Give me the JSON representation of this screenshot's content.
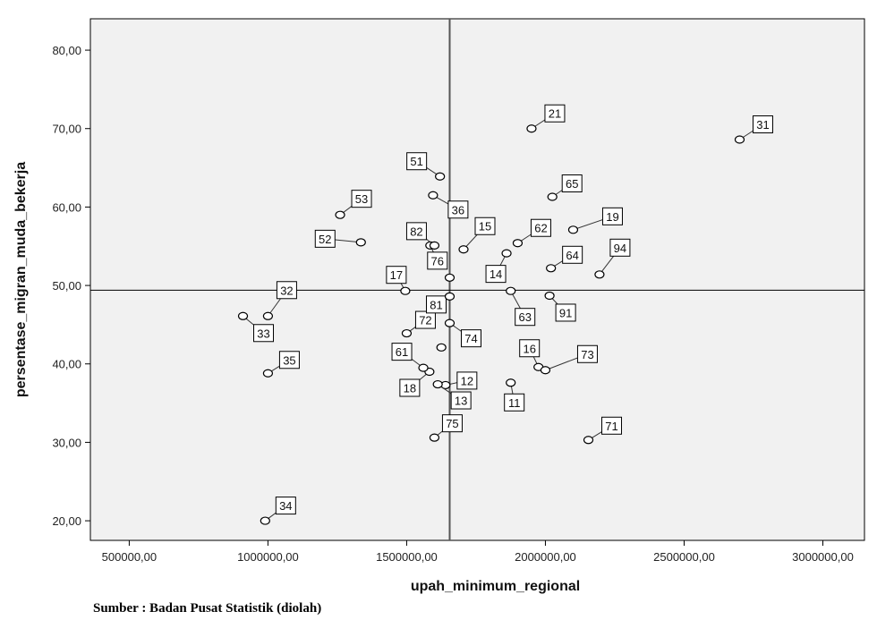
{
  "chart_data": {
    "type": "scatter",
    "xlabel": "upah_minimum_regional",
    "ylabel": "persentase_migran_muda_bekerja",
    "xlim": [
      360000,
      3150000
    ],
    "ylim": [
      17500,
      84000
    ],
    "x_ticks": [
      500000,
      1000000,
      1500000,
      2000000,
      2500000,
      3000000
    ],
    "x_tick_labels": [
      "500000,00",
      "1000000,00",
      "1500000,00",
      "2000000,00",
      "2500000,00",
      "3000000,00"
    ],
    "y_ticks": [
      20,
      30,
      40,
      50,
      60,
      70,
      80
    ],
    "y_tick_labels": [
      "20,00",
      "30,00",
      "40,00",
      "50,00",
      "60,00",
      "70,00",
      "80,00"
    ],
    "reference_lines": {
      "x": 1655000,
      "y": 49.4
    },
    "grid": false,
    "plot_background": "#f1f1f1",
    "marker_color": "#000000",
    "points": [
      {
        "label": "11",
        "x": 1875000,
        "y": 37.6,
        "dx": 4,
        "dy": 22
      },
      {
        "label": "12",
        "x": 1640000,
        "y": 37.3,
        "dx": 24,
        "dy": -5
      },
      {
        "label": "13",
        "x": 1612000,
        "y": 37.4,
        "dx": 26,
        "dy": 18
      },
      {
        "label": "14",
        "x": 1860000,
        "y": 54.1,
        "dx": -12,
        "dy": 23
      },
      {
        "label": "15",
        "x": 1705000,
        "y": 54.6,
        "dx": 24,
        "dy": -26
      },
      {
        "label": "16",
        "x": 1975000,
        "y": 39.6,
        "dx": -10,
        "dy": -21
      },
      {
        "label": "17",
        "x": 1495000,
        "y": 49.3,
        "dx": -10,
        "dy": -18
      },
      {
        "label": "18",
        "x": 1582000,
        "y": 39.0,
        "dx": -22,
        "dy": 18
      },
      {
        "label": "19",
        "x": 2100000,
        "y": 57.1,
        "dx": 44,
        "dy": -15
      },
      {
        "label": "21",
        "x": 1950000,
        "y": 70.0,
        "dx": 26,
        "dy": -17
      },
      {
        "label": "31",
        "x": 2700000,
        "y": 68.6,
        "dx": 26,
        "dy": -17
      },
      {
        "label": "32",
        "x": 1000000,
        "y": 46.1,
        "dx": 21,
        "dy": -29
      },
      {
        "label": "33",
        "x": 910000,
        "y": 46.1,
        "dx": 23,
        "dy": 19
      },
      {
        "label": "34",
        "x": 990000,
        "y": 20.0,
        "dx": 23,
        "dy": -17
      },
      {
        "label": "35",
        "x": 1000000,
        "y": 38.8,
        "dx": 24,
        "dy": -15
      },
      {
        "label": "36",
        "x": 1595000,
        "y": 61.5,
        "dx": 28,
        "dy": 16
      },
      {
        "label": "51",
        "x": 1620000,
        "y": 63.9,
        "dx": -26,
        "dy": -17
      },
      {
        "label": "52",
        "x": 1335000,
        "y": 55.5,
        "dx": -40,
        "dy": -4
      },
      {
        "label": "53",
        "x": 1260000,
        "y": 59.0,
        "dx": 24,
        "dy": -18
      },
      {
        "label": "61",
        "x": 1560000,
        "y": 39.5,
        "dx": -24,
        "dy": -18
      },
      {
        "label": "62",
        "x": 1900000,
        "y": 55.4,
        "dx": 26,
        "dy": -17
      },
      {
        "label": "63",
        "x": 1875000,
        "y": 49.3,
        "dx": 16,
        "dy": 29
      },
      {
        "label": "64",
        "x": 2020000,
        "y": 52.2,
        "dx": 24,
        "dy": -15
      },
      {
        "label": "65",
        "x": 2025000,
        "y": 61.3,
        "dx": 22,
        "dy": -15
      },
      {
        "label": "71",
        "x": 2155000,
        "y": 30.3,
        "dx": 26,
        "dy": -16
      },
      {
        "label": "72",
        "x": 1500000,
        "y": 43.9,
        "dx": 21,
        "dy": -15
      },
      {
        "label": "73",
        "x": 2000000,
        "y": 39.2,
        "dx": 47,
        "dy": -18
      },
      {
        "label": "74",
        "x": 1655000,
        "y": 45.2,
        "dx": 24,
        "dy": 17
      },
      {
        "label": "75",
        "x": 1600000,
        "y": 30.6,
        "dx": 20,
        "dy": -16
      },
      {
        "label": "76",
        "x": 1585000,
        "y": 55.1,
        "dx": 8,
        "dy": 17
      },
      {
        "label": "81",
        "x": 1655000,
        "y": 48.6,
        "dx": -15,
        "dy": 9
      },
      {
        "label": "82",
        "x": 1600000,
        "y": 55.1,
        "dx": -20,
        "dy": -16
      },
      {
        "label": "91",
        "x": 2015000,
        "y": 48.7,
        "dx": 18,
        "dy": 19
      },
      {
        "label": "94",
        "x": 2195000,
        "y": 51.4,
        "dx": 23,
        "dy": -30
      },
      {
        "label": "",
        "x": 1655000,
        "y": 51.0
      },
      {
        "label": "",
        "x": 1625000,
        "y": 42.1
      }
    ]
  },
  "footer": {
    "source": "Sumber : Badan Pusat Statistik (diolah)"
  }
}
